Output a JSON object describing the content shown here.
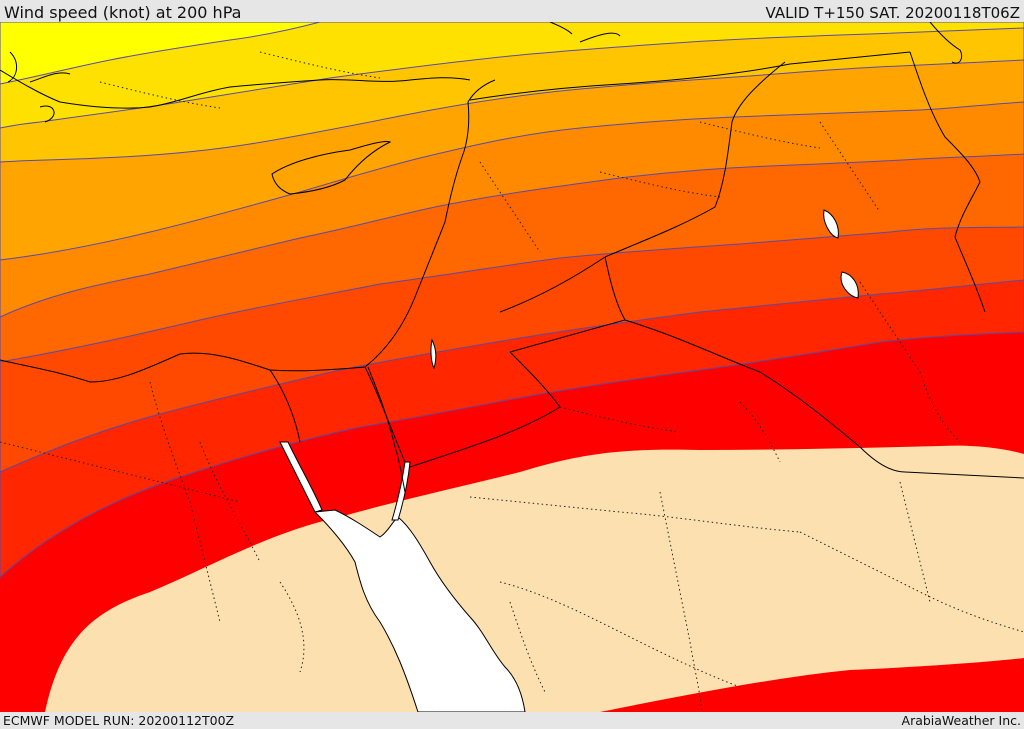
{
  "header": {
    "title": "Wind speed (knot) at 200 hPa",
    "valid_time": "VALID T+150 SAT. 20200118T06Z"
  },
  "footer": {
    "model_run": "ECMWF MODEL RUN: 20200112T00Z",
    "credit": "ArabiaWeather Inc."
  },
  "map": {
    "variable": "wind speed",
    "level": "200 hPa",
    "unit": "knot",
    "band_colors": [
      "#ffff00",
      "#ffe100",
      "#ffc500",
      "#ffa400",
      "#ff8a00",
      "#ff6700",
      "#ff4800",
      "#ff2600",
      "#ff0000",
      "#fde0b0"
    ],
    "sea_color": "#ffffff",
    "coastline_color": "#000000",
    "border_style": "dotted",
    "contour_color": "#5a4aa8"
  }
}
